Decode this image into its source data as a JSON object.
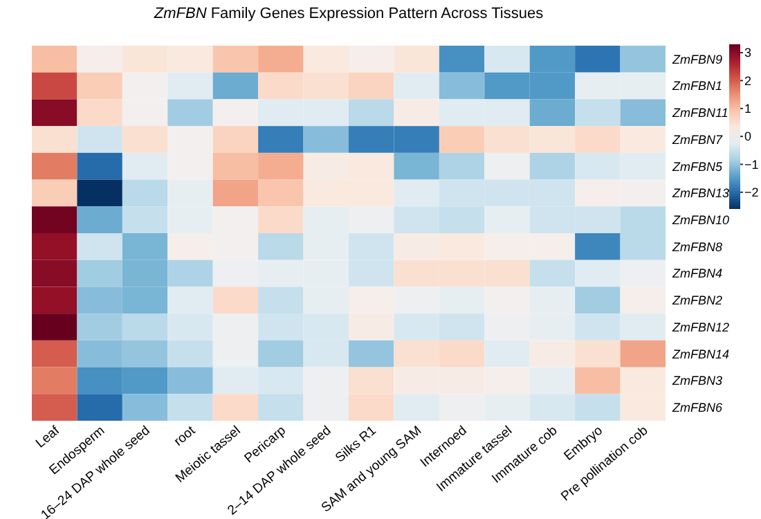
{
  "chart_data": {
    "type": "heatmap",
    "title": "ZmFBN Family Genes Expression Pattern Across Tissues",
    "categories": [
      "Leaf",
      "Endosperm",
      "16–24 DAP whole seed",
      "root",
      "Meiotic tassel",
      "Pericarp",
      "2–14 DAP whole seed",
      "Silks R1",
      "SAM and young SAM",
      "Internoed",
      "Immature tassel",
      "Immature cob",
      "Embryo",
      "Pre pollination cob"
    ],
    "y_categories": [
      "ZmFBN9",
      "ZmFBN1",
      "ZmFBN11",
      "ZmFBN7",
      "ZmFBN5",
      "ZmFBN13",
      "ZmFBN10",
      "ZmFBN8",
      "ZmFBN4",
      "ZmFBN2",
      "ZmFBN12",
      "ZmFBN14",
      "ZmFBN3",
      "ZmFBN6"
    ],
    "cells": [
      [
        1.0,
        0.1,
        0.4,
        0.3,
        0.9,
        1.2,
        0.3,
        0.1,
        0.4,
        -1.6,
        -0.4,
        -1.5,
        -1.9,
        -1.0
      ],
      [
        2.2,
        0.8,
        0,
        -0.3,
        -1.3,
        0.6,
        0.5,
        0.7,
        -0.3,
        -1.1,
        -1.5,
        -1.5,
        -0.2,
        -0.2
      ],
      [
        3.0,
        0.6,
        0,
        -0.9,
        0,
        -0.3,
        -0.3,
        -0.7,
        0.2,
        -0.3,
        -0.3,
        -1.3,
        -0.6,
        -1.1
      ],
      [
        0.5,
        -0.5,
        0.5,
        0,
        0.7,
        -1.8,
        -1.1,
        -1.8,
        -1.8,
        0.8,
        0.5,
        0.4,
        0.6,
        0.3
      ],
      [
        1.7,
        -2.0,
        -0.3,
        0,
        1.0,
        1.2,
        0.2,
        0.3,
        -1.2,
        -0.8,
        -0.1,
        -0.8,
        -0.4,
        -0.3
      ],
      [
        0.8,
        -2.6,
        -0.7,
        -0.2,
        1.3,
        0.9,
        0.3,
        0.3,
        -0.3,
        -0.5,
        -0.5,
        -0.5,
        0.1,
        0
      ],
      [
        3.2,
        -1.3,
        -0.6,
        -0.2,
        0,
        0.6,
        -0.2,
        -0.1,
        -0.5,
        -0.6,
        -0.2,
        -0.5,
        -0.5,
        -0.7
      ],
      [
        2.9,
        -0.5,
        -1.2,
        0.1,
        0,
        -0.7,
        -0.2,
        -0.5,
        0.2,
        0.3,
        0.1,
        0.1,
        -1.7,
        -0.7
      ],
      [
        3.0,
        -0.9,
        -1.2,
        -0.8,
        -0.1,
        -0.2,
        -0.2,
        -0.5,
        0.5,
        0.5,
        0.5,
        -0.6,
        -0.3,
        -0.1
      ],
      [
        2.9,
        -1.1,
        -1.2,
        -0.3,
        0.6,
        -0.6,
        -0.2,
        0.1,
        -0.1,
        -0.2,
        0,
        -0.2,
        -0.9,
        0.1
      ],
      [
        3.3,
        -0.9,
        -0.7,
        -0.4,
        -0.1,
        -0.5,
        -0.4,
        0.2,
        -0.4,
        -0.5,
        -0.1,
        -0.2,
        -0.5,
        -0.3
      ],
      [
        2.0,
        -1.1,
        -1.0,
        -0.6,
        -0.1,
        -0.9,
        -0.4,
        -1.0,
        0.5,
        0.6,
        -0.3,
        0.2,
        0.5,
        1.3
      ],
      [
        1.7,
        -1.6,
        -1.5,
        -1.1,
        -0.3,
        -0.4,
        -0.1,
        0.5,
        0.2,
        0.2,
        0.1,
        -0.2,
        1.0,
        0.3
      ],
      [
        2.0,
        -2.0,
        -1.1,
        -0.6,
        0.6,
        -0.6,
        -0.1,
        0.6,
        -0.3,
        -0.1,
        -0.2,
        -0.4,
        -0.6,
        0.3
      ]
    ],
    "clim": [
      -2.6,
      3.3
    ],
    "cticks": [
      {
        "value": -2,
        "label": "−2"
      },
      {
        "value": -1,
        "label": "−1"
      },
      0,
      1,
      2,
      3
    ]
  }
}
